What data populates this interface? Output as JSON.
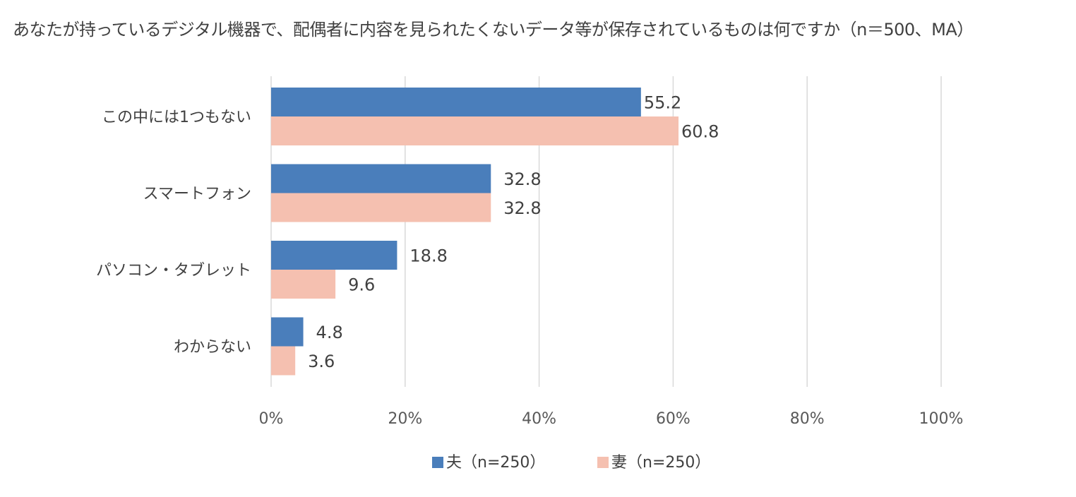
{
  "chart_data": {
    "type": "bar",
    "orientation": "horizontal",
    "title": "あなたが持っているデジタル機器で、配偶者に内容を見られたくないデータ等が保存されているものは何ですか（n＝500、MA）",
    "categories": [
      "この中には1つもない",
      "スマートフォン",
      "パソコン・タブレット",
      "わからない"
    ],
    "series": [
      {
        "name": "夫（n=250）",
        "color": "#4a7ebb",
        "values": [
          55.2,
          32.8,
          18.8,
          4.8
        ],
        "value_labels": [
          "55.2",
          "32.8",
          "18.8",
          "4.8"
        ]
      },
      {
        "name": "妻（n=250）",
        "color": "#f5c0b0",
        "values": [
          60.8,
          32.8,
          9.6,
          3.6
        ],
        "value_labels": [
          "60.8",
          "32.8",
          "9.6",
          "3.6"
        ]
      }
    ],
    "xlim": [
      0,
      100
    ],
    "ticks": [
      0,
      20,
      40,
      60,
      80,
      100
    ],
    "tick_labels": [
      "0%",
      "20%",
      "40%",
      "60%",
      "80%",
      "100%"
    ],
    "grid": true,
    "gridline_color": "#d9d9d9",
    "legend_position": "bottom"
  }
}
